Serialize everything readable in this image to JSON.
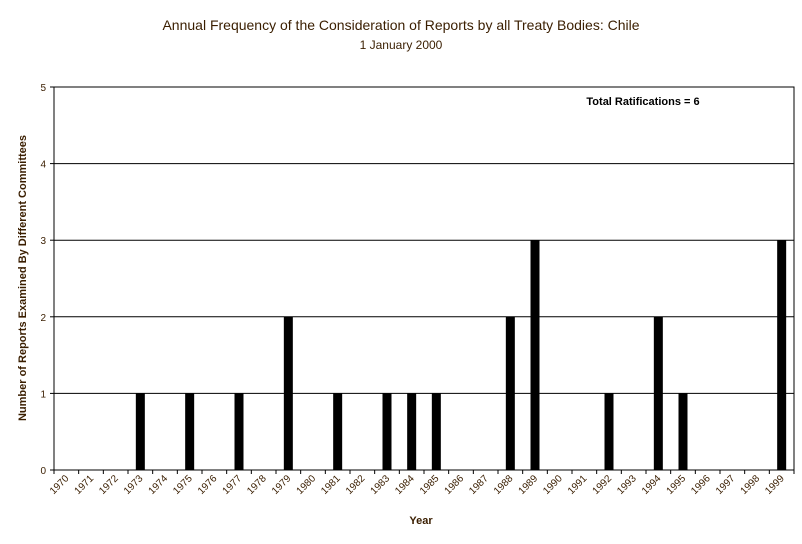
{
  "chart_data": {
    "type": "bar",
    "title": "Annual Frequency of the Consideration of Reports by all Treaty Bodies: Chile",
    "subtitle": "1 January 2000",
    "xlabel": "Year",
    "ylabel": "Number of Reports Examined By Different Committees",
    "annotation": "Total Ratifications = 6",
    "categories": [
      "1970",
      "1971",
      "1972",
      "1973",
      "1974",
      "1975",
      "1976",
      "1977",
      "1978",
      "1979",
      "1980",
      "1981",
      "1982",
      "1983",
      "1984",
      "1985",
      "1986",
      "1987",
      "1988",
      "1989",
      "1990",
      "1991",
      "1992",
      "1993",
      "1994",
      "1995",
      "1996",
      "1997",
      "1998",
      "1999"
    ],
    "values": [
      0,
      0,
      0,
      1,
      0,
      1,
      0,
      1,
      0,
      2,
      0,
      1,
      0,
      1,
      1,
      1,
      0,
      0,
      2,
      3,
      0,
      0,
      1,
      0,
      2,
      1,
      0,
      0,
      0,
      3
    ],
    "ylim": [
      0,
      5
    ],
    "yticks": [
      0,
      1,
      2,
      3,
      4,
      5
    ],
    "grid": true,
    "bar_color": "#000000",
    "text_color": "#3a1e00"
  }
}
